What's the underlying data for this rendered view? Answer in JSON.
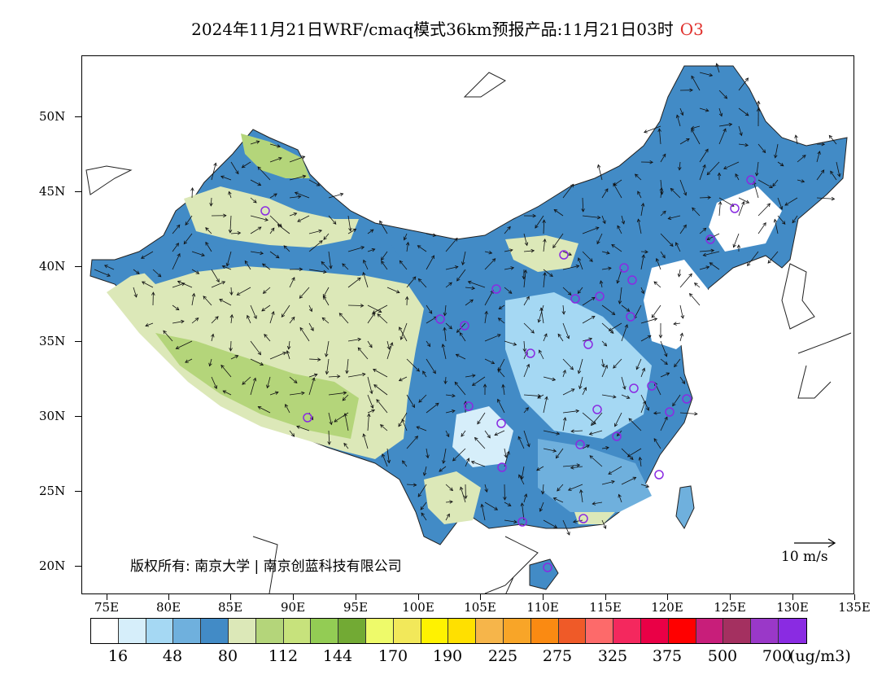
{
  "title": {
    "main": "2024年11月21日WRF/cmaq模式36km预报产品:11月21日03时",
    "pollutant": "O3",
    "pollutant_color": "#e0302c"
  },
  "y_axis": {
    "labels": [
      "50N",
      "45N",
      "40N",
      "35N",
      "30N",
      "25N",
      "20N"
    ]
  },
  "x_axis": {
    "labels": [
      "75E",
      "80E",
      "85E",
      "90E",
      "95E",
      "100E",
      "105E",
      "110E",
      "115E",
      "120E",
      "125E",
      "130E",
      "135E"
    ]
  },
  "copyright": "版权所有: 南京大学 | 南京创蓝科技有限公司",
  "reference_vector": {
    "label": "10 m/s"
  },
  "legend": {
    "colors": [
      "#ffffff",
      "#d6eefa",
      "#a5d8f3",
      "#6fb0dd",
      "#428bc6",
      "#dce8b8",
      "#b4d57a",
      "#c7e27c",
      "#93cc54",
      "#72aa34",
      "#eefa6a",
      "#f2e85a",
      "#fff200",
      "#ffe000",
      "#f6b54a",
      "#f8a528",
      "#fa8a12",
      "#ef5a28",
      "#fd6a6a",
      "#f4285e",
      "#ea0046",
      "#ff0000",
      "#c81e7a",
      "#a43060",
      "#9a38c8",
      "#8a2be2"
    ],
    "labels": [
      "16",
      "48",
      "80",
      "112",
      "144",
      "170",
      "190",
      "225",
      "275",
      "325",
      "375",
      "500",
      "700"
    ],
    "unit": "(ug/m3)"
  },
  "map": {
    "lon_range": [
      73,
      135
    ],
    "lat_range": [
      18,
      54
    ],
    "palette": {
      "very_light": "#d6eefa",
      "light_blue": "#a5d8f3",
      "mid_blue": "#6fb0dd",
      "dark_blue": "#428bc6",
      "pale_green": "#dce8b8",
      "green": "#b4d57a"
    },
    "station_color": "#8a2be2"
  }
}
